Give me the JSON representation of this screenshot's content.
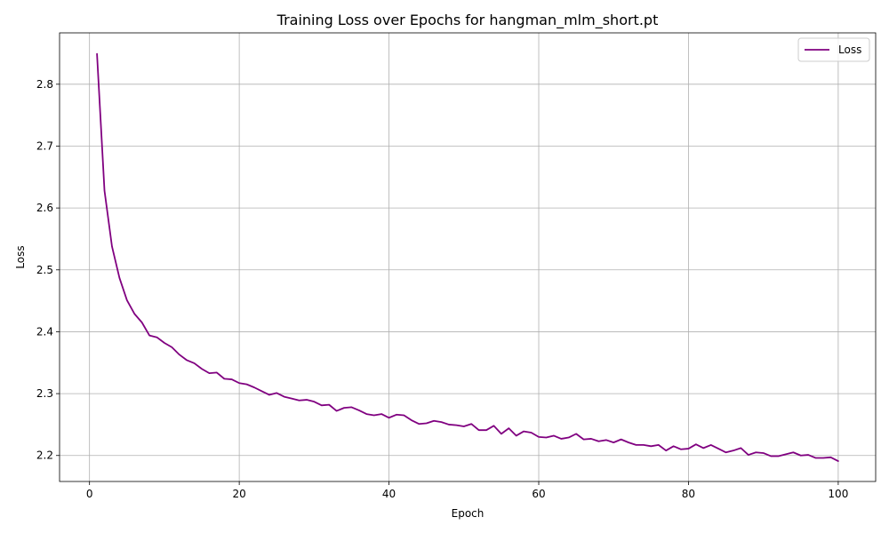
{
  "chart_data": {
    "type": "line",
    "title": "Training Loss over Epochs for hangman_mlm_short.pt",
    "xlabel": "Epoch",
    "ylabel": "Loss",
    "xlim": [
      -4,
      105
    ],
    "ylim": [
      2.158,
      2.883
    ],
    "xticks": [
      0,
      20,
      40,
      60,
      80,
      100
    ],
    "yticks": [
      2.2,
      2.3,
      2.4,
      2.5,
      2.6,
      2.7,
      2.8
    ],
    "grid": true,
    "legend_position": "top-right",
    "colors": {
      "line": "#800080",
      "grid": "#b0b0b0"
    },
    "series": [
      {
        "name": "Loss",
        "x": [
          1,
          2,
          3,
          4,
          5,
          6,
          7,
          8,
          9,
          10,
          11,
          12,
          13,
          14,
          15,
          16,
          17,
          18,
          19,
          20,
          21,
          22,
          23,
          24,
          25,
          26,
          27,
          28,
          29,
          30,
          31,
          32,
          33,
          34,
          35,
          36,
          37,
          38,
          39,
          40,
          41,
          42,
          43,
          44,
          45,
          46,
          47,
          48,
          49,
          50,
          51,
          52,
          53,
          54,
          55,
          56,
          57,
          58,
          59,
          60,
          61,
          62,
          63,
          64,
          65,
          66,
          67,
          68,
          69,
          70,
          71,
          72,
          73,
          74,
          75,
          76,
          77,
          78,
          79,
          80,
          81,
          82,
          83,
          84,
          85,
          86,
          87,
          88,
          89,
          90,
          91,
          92,
          93,
          94,
          95,
          96,
          97,
          98,
          99,
          100
        ],
        "values": [
          2.849,
          2.628,
          2.538,
          2.487,
          2.451,
          2.429,
          2.415,
          2.394,
          2.391,
          2.382,
          2.375,
          2.363,
          2.354,
          2.349,
          2.34,
          2.333,
          2.334,
          2.324,
          2.323,
          2.317,
          2.315,
          2.31,
          2.304,
          2.298,
          2.301,
          2.295,
          2.292,
          2.289,
          2.29,
          2.287,
          2.281,
          2.282,
          2.272,
          2.277,
          2.278,
          2.273,
          2.267,
          2.265,
          2.267,
          2.261,
          2.266,
          2.265,
          2.257,
          2.251,
          2.252,
          2.256,
          2.254,
          2.25,
          2.249,
          2.247,
          2.251,
          2.241,
          2.241,
          2.248,
          2.235,
          2.244,
          2.232,
          2.239,
          2.237,
          2.23,
          2.229,
          2.232,
          2.227,
          2.229,
          2.235,
          2.226,
          2.227,
          2.223,
          2.225,
          2.221,
          2.226,
          2.221,
          2.217,
          2.217,
          2.215,
          2.217,
          2.208,
          2.215,
          2.21,
          2.211,
          2.218,
          2.212,
          2.217,
          2.211,
          2.205,
          2.208,
          2.212,
          2.201,
          2.205,
          2.204,
          2.199,
          2.199,
          2.202,
          2.205,
          2.2,
          2.201,
          2.196,
          2.196,
          2.197,
          2.191
        ]
      }
    ]
  }
}
